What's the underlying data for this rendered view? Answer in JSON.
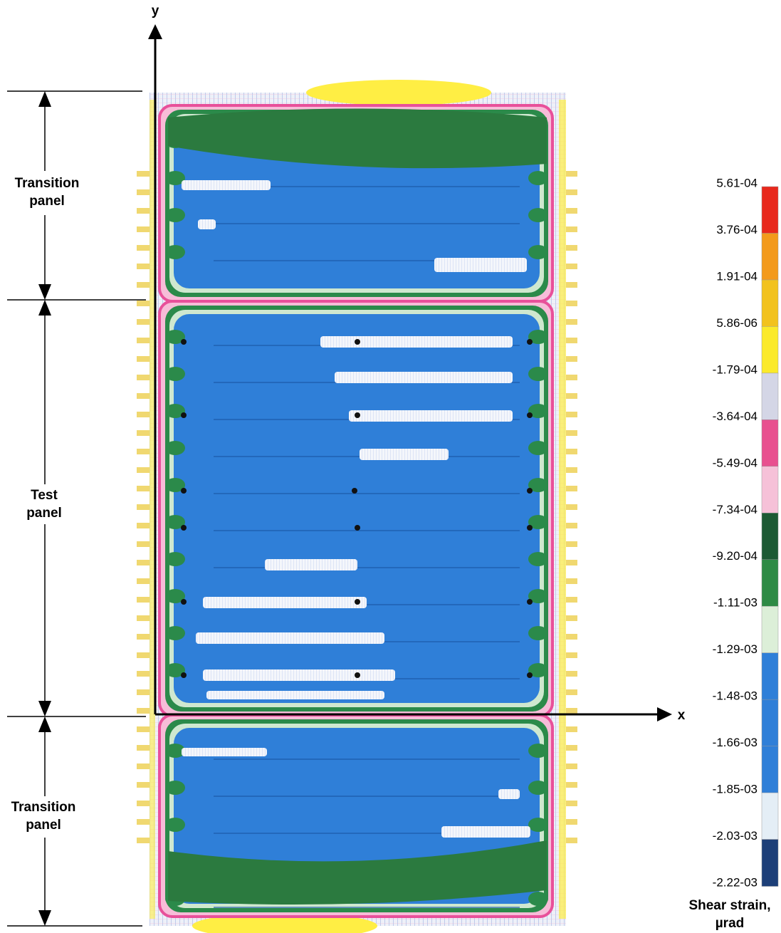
{
  "axes": {
    "x": "x",
    "y": "y"
  },
  "regions": [
    {
      "lines": [
        "Transition",
        "panel"
      ]
    },
    {
      "lines": [
        "Test",
        "panel"
      ]
    },
    {
      "lines": [
        "Transition",
        "panel"
      ]
    }
  ],
  "colorbar": {
    "labels": [
      "5.61-04",
      "3.76-04",
      "1.91-04",
      "5.86-06",
      "-1.79-04",
      "-3.64-04",
      "-5.49-04",
      "-7.34-04",
      "-9.20-04",
      "-1.11-03",
      "-1.29-03",
      "-1.48-03",
      "-1.66-03",
      "-1.85-03",
      "-2.03-03",
      "-2.22-03"
    ],
    "title": [
      "Shear strain,",
      "µrad"
    ]
  }
}
